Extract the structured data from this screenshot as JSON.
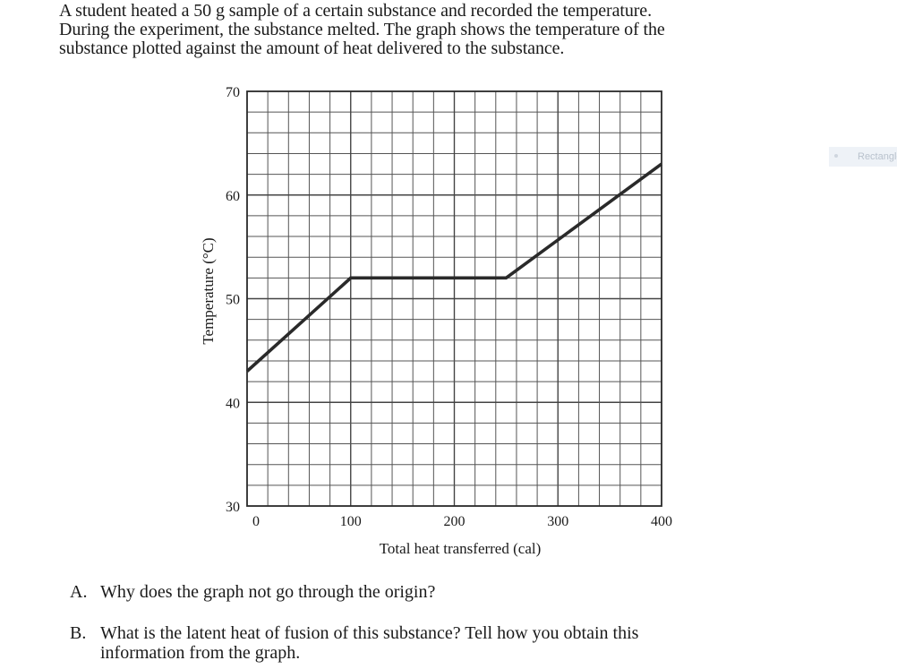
{
  "intro": {
    "lines": [
      "A student heated a 50 g sample of a certain substance and recorded the temperature.",
      "During the experiment, the substance melted.  The graph shows the temperature of the",
      "substance plotted against the amount of heat delivered to the substance."
    ]
  },
  "chart_data": {
    "type": "line",
    "title": "",
    "xlabel": "Total heat transferred (cal)",
    "ylabel": "Temperature (°C)",
    "xlim": [
      0,
      400
    ],
    "ylim": [
      30,
      70
    ],
    "x_ticks": [
      0,
      100,
      200,
      300,
      400
    ],
    "y_ticks": [
      30,
      40,
      50,
      60,
      70
    ],
    "grid": true,
    "legend": "none",
    "line_color": "#2a2a2a",
    "series": [
      {
        "x": [
          0,
          100,
          250,
          400
        ],
        "y": [
          43,
          52,
          52,
          63
        ]
      }
    ]
  },
  "questions": [
    {
      "letter": "A.",
      "lines": [
        "Why does the graph not go through the origin?"
      ]
    },
    {
      "letter": "B.",
      "lines": [
        "What is the latent heat of fusion of this substance?  Tell how you obtain this",
        "information from the graph."
      ]
    }
  ],
  "side_tab": {
    "label": "Rectangle"
  }
}
